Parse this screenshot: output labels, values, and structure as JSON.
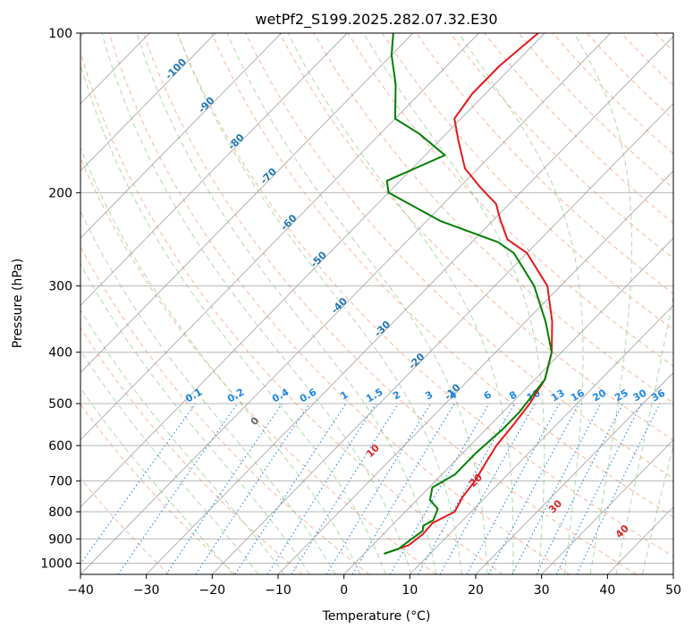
{
  "chart_data": {
    "type": "line",
    "diagram": "skew-T log-P",
    "title": "wetPf2_S199.2025.282.07.32.E30",
    "xlabel": "Temperature (°C)",
    "ylabel": "Pressure (hPa)",
    "xlim": [
      -40,
      50
    ],
    "ylim": [
      1050,
      100
    ],
    "x_ticks": [
      -40,
      -30,
      -20,
      -10,
      0,
      10,
      20,
      30,
      40,
      50
    ],
    "x_tick_labels": [
      "−40",
      "−30",
      "−20",
      "−10",
      "0",
      "10",
      "20",
      "30",
      "40",
      "50"
    ],
    "y_ticks": [
      1000,
      900,
      800,
      700,
      600,
      500,
      400,
      300,
      200,
      100
    ],
    "y_tick_labels": [
      "1000",
      "900",
      "800",
      "700",
      "600",
      "500",
      "400",
      "300",
      "200",
      "100"
    ],
    "isotherm_labels": [
      "-100",
      "-90",
      "-80",
      "-70",
      "-60",
      "-50",
      "-40",
      "-30",
      "-20",
      "-10"
    ],
    "mixing_ratio_labels": [
      "0.1",
      "0.2",
      "0.4",
      "0.6",
      "1",
      "1.5",
      "2",
      "3",
      "4",
      "6",
      "8",
      "10",
      "13",
      "16",
      "20",
      "25",
      "30",
      "36"
    ],
    "moist_adiabat_labels": [
      "0",
      "10",
      "20",
      "30",
      "40"
    ],
    "colors": {
      "temperature": "#e41a1c",
      "dewpoint": "#008000",
      "isotherm": "#999999",
      "isotherm_label": "#1f77b4",
      "dry_adiabat": "#f4a582",
      "moist_adiabat": "#a6d6a6",
      "mixing_ratio": "#1e88e5",
      "moist_label_zero": "#666666",
      "moist_label": "#d62728",
      "axis": "#000000"
    },
    "series": [
      {
        "name": "Temperature",
        "points": [
          [
            3.0,
            960
          ],
          [
            5.5,
            925
          ],
          [
            6.0,
            880
          ],
          [
            5.8,
            840
          ],
          [
            7.5,
            800
          ],
          [
            6.5,
            750
          ],
          [
            6.0,
            700
          ],
          [
            5.0,
            650
          ],
          [
            4.0,
            600
          ],
          [
            3.5,
            550
          ],
          [
            2.8,
            500
          ],
          [
            1.5,
            450
          ],
          [
            -1.5,
            400
          ],
          [
            -6,
            350
          ],
          [
            -12,
            300
          ],
          [
            -20,
            260
          ],
          [
            -25,
            245
          ],
          [
            -29,
            225
          ],
          [
            -32,
            210
          ],
          [
            -37,
            195
          ],
          [
            -42,
            180
          ],
          [
            -47,
            160
          ],
          [
            -51,
            145
          ],
          [
            -52,
            130
          ],
          [
            -52,
            115
          ],
          [
            -51,
            100
          ]
        ]
      },
      {
        "name": "Dewpoint",
        "points": [
          [
            3.0,
            960
          ],
          [
            4.5,
            940
          ],
          [
            5.0,
            900
          ],
          [
            5.5,
            870
          ],
          [
            4.8,
            850
          ],
          [
            5.5,
            830
          ],
          [
            4.5,
            790
          ],
          [
            2.0,
            760
          ],
          [
            0.5,
            720
          ],
          [
            2.0,
            680
          ],
          [
            2.0,
            620
          ],
          [
            2.5,
            560
          ],
          [
            2.5,
            520
          ],
          [
            1.5,
            450
          ],
          [
            -1.5,
            400
          ],
          [
            -7,
            350
          ],
          [
            -14,
            300
          ],
          [
            -22,
            260
          ],
          [
            -26,
            248
          ],
          [
            -38,
            226
          ],
          [
            -50,
            200
          ],
          [
            -52,
            190
          ],
          [
            -47,
            170
          ],
          [
            -54,
            155
          ],
          [
            -60,
            145
          ],
          [
            -65,
            125
          ],
          [
            -70,
            110
          ],
          [
            -73,
            100
          ]
        ]
      }
    ]
  }
}
